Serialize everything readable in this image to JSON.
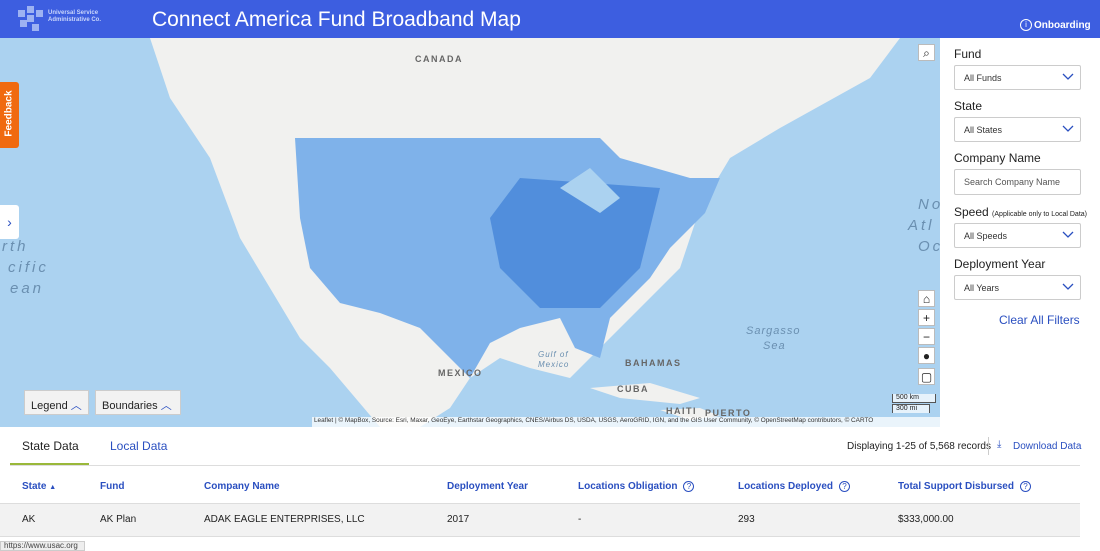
{
  "header": {
    "logo": "Universal Service Administrative Co.",
    "title": "Connect America Fund Broadband Map",
    "onboarding": "Onboarding"
  },
  "feedback": "Feedback",
  "map": {
    "labels": {
      "canada": "CANADA",
      "pacific": [
        "rth",
        "cific",
        "ean"
      ],
      "atlantic": [
        "No",
        "Atl",
        "Oc"
      ],
      "mexico": "MEXICO",
      "gulf": [
        "Gulf of",
        "Mexico"
      ],
      "bahamas": "BAHAMAS",
      "cuba": "CUBA",
      "haiti": "HAITI",
      "puerto": "PUERTO",
      "sargasso": [
        "Sargasso",
        "Sea"
      ]
    },
    "scale": [
      "500 km",
      "300 mi"
    ],
    "attribution": "Leaflet | © MapBox, Source: Esri, Maxar, GeoEye, Earthstar Geographics, CNES/Airbus DS, USDA, USGS, AeroGRID, IGN, and the GIS User Community, © OpenStreetMap contributors, © CARTO",
    "legend": "Legend",
    "boundaries": "Boundaries"
  },
  "filters": {
    "fund": {
      "label": "Fund",
      "value": "All Funds"
    },
    "state": {
      "label": "State",
      "value": "All States"
    },
    "company": {
      "label": "Company Name",
      "placeholder": "Search Company Name"
    },
    "speed": {
      "label": "Speed",
      "note": "(Applicable only to Local Data)",
      "value": "All Speeds"
    },
    "year": {
      "label": "Deployment Year",
      "value": "All Years"
    },
    "clear": "Clear All Filters"
  },
  "tabs": [
    "State Data",
    "Local Data"
  ],
  "records": "Displaying 1-25 of 5,568 records",
  "download": "Download Data",
  "table": {
    "headers": [
      "State",
      "Fund",
      "Company Name",
      "Deployment Year",
      "Locations Obligation",
      "Locations Deployed",
      "Total Support Disbursed"
    ],
    "rows": [
      [
        "AK",
        "AK Plan",
        "ADAK EAGLE ENTERPRISES, LLC",
        "2017",
        "-",
        "293",
        "$333,000.00"
      ]
    ]
  },
  "status_url": "https://www.usac.org"
}
